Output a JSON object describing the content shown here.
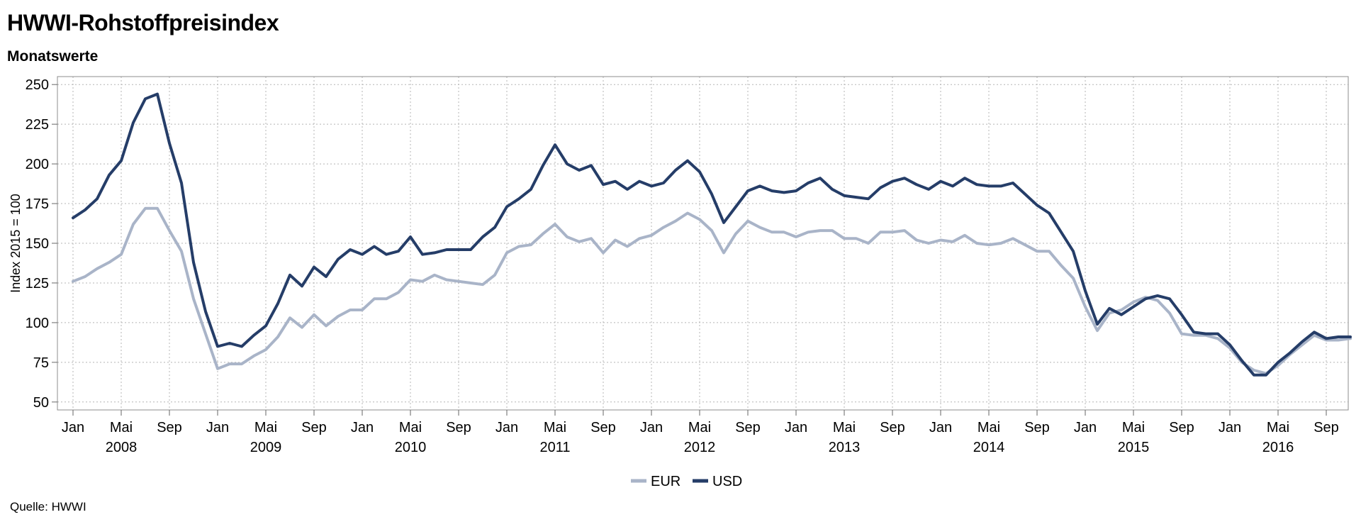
{
  "header": {
    "title": "HWWI-Rohstoffpreisindex",
    "subtitle": "Monatswerte"
  },
  "footer": {
    "source": "Quelle: HWWI"
  },
  "chart_data": {
    "type": "line",
    "title": "HWWI-Rohstoffpreisindex",
    "subtitle": "Monatswerte",
    "ylabel": "Index 2015 = 100",
    "xlabel": "",
    "ylim": [
      45,
      255
    ],
    "yticks": [
      50,
      75,
      100,
      125,
      150,
      175,
      200,
      225,
      250
    ],
    "grid": true,
    "legend_position": "bottom",
    "x_start": "2008-01",
    "month_tick_labels": [
      "Jan",
      "Mai",
      "Sep"
    ],
    "year_labels": [
      "2008",
      "2009",
      "2010",
      "2011",
      "2012",
      "2013",
      "2014",
      "2015",
      "2016"
    ],
    "series": [
      {
        "name": "EUR",
        "color": "#a9b4c8",
        "values": [
          126,
          129,
          134,
          138,
          143,
          162,
          172,
          172,
          158,
          145,
          115,
          93,
          71,
          74,
          74,
          79,
          83,
          91,
          103,
          97,
          105,
          98,
          104,
          108,
          108,
          115,
          115,
          119,
          127,
          126,
          130,
          127,
          126,
          125,
          124,
          130,
          144,
          148,
          149,
          156,
          162,
          154,
          151,
          153,
          144,
          152,
          148,
          153,
          155,
          160,
          164,
          169,
          165,
          158,
          144,
          156,
          164,
          160,
          157,
          157,
          154,
          157,
          158,
          158,
          153,
          153,
          150,
          157,
          157,
          158,
          152,
          150,
          152,
          151,
          155,
          150,
          149,
          150,
          153,
          149,
          145,
          145,
          136,
          128,
          110,
          95,
          106,
          108,
          113,
          116,
          114,
          106,
          93,
          92,
          92,
          90,
          84,
          75,
          70,
          68,
          73,
          80,
          86,
          92,
          89,
          89,
          90
        ]
      },
      {
        "name": "USD",
        "color": "#253d68",
        "values": [
          166,
          171,
          178,
          193,
          202,
          226,
          241,
          244,
          213,
          188,
          138,
          107,
          85,
          87,
          85,
          92,
          98,
          112,
          130,
          123,
          135,
          129,
          140,
          146,
          143,
          148,
          143,
          145,
          154,
          143,
          144,
          146,
          146,
          146,
          154,
          160,
          173,
          178,
          184,
          199,
          212,
          200,
          196,
          199,
          187,
          189,
          184,
          189,
          186,
          188,
          196,
          202,
          195,
          181,
          163,
          173,
          183,
          186,
          183,
          182,
          183,
          188,
          191,
          184,
          180,
          179,
          178,
          185,
          189,
          191,
          187,
          184,
          189,
          186,
          191,
          187,
          186,
          186,
          188,
          181,
          174,
          169,
          157,
          145,
          120,
          99,
          109,
          105,
          110,
          115,
          117,
          115,
          105,
          94,
          93,
          93,
          86,
          76,
          67,
          67,
          75,
          81,
          88,
          94,
          90,
          91,
          91
        ]
      }
    ]
  }
}
